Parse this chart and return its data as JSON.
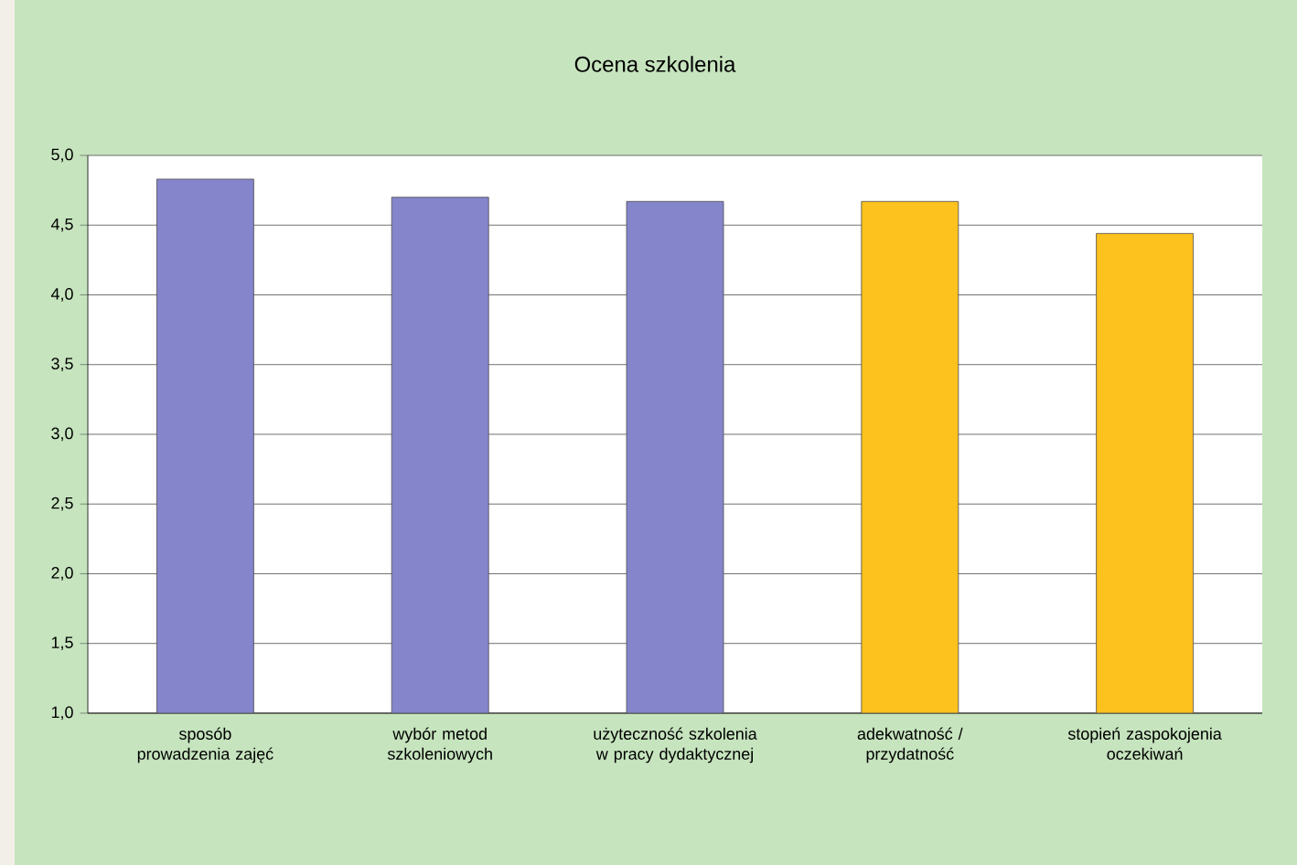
{
  "chart_data": {
    "type": "bar",
    "title": "Ocena szkolenia",
    "categories": [
      "sposób prowadzenia zajęć",
      "wybór metod szkoleniowych",
      "użyteczność szkolenia w pracy dydaktycznej",
      "adekwatność / przydatność",
      "stopień zaspokojenia oczekiwań"
    ],
    "values": [
      4.83,
      4.7,
      4.67,
      4.67,
      4.44
    ],
    "colors": [
      "#8585cc",
      "#8585cc",
      "#8585cc",
      "#fdc21e",
      "#fdc21e"
    ],
    "ylim": [
      1,
      5
    ],
    "yticks": [
      {
        "value": 1,
        "label": "1,0"
      },
      {
        "value": 1.5,
        "label": "1,5"
      },
      {
        "value": 2,
        "label": "2,0"
      },
      {
        "value": 2.5,
        "label": "2,5"
      },
      {
        "value": 3,
        "label": "3,0"
      },
      {
        "value": 3.5,
        "label": "3,5"
      },
      {
        "value": 4,
        "label": "4,0"
      },
      {
        "value": 4.5,
        "label": "4,5"
      },
      {
        "value": 5,
        "label": "5,0"
      }
    ],
    "grid": "y"
  }
}
